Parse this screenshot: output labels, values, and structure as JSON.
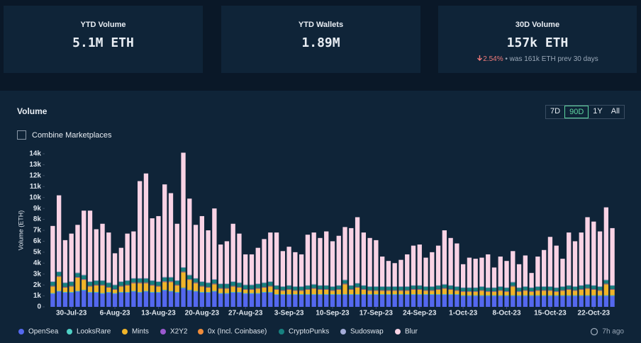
{
  "cards": [
    {
      "title": "YTD Volume",
      "value": "5.1M ETH"
    },
    {
      "title": "YTD Wallets",
      "value": "1.89M"
    },
    {
      "title": "30D Volume",
      "value": "157k ETH",
      "change": "2.54%",
      "note": "• was 161k ETH prev 30 days"
    }
  ],
  "panel": {
    "title": "Volume",
    "ranges": [
      "7D",
      "90D",
      "1Y",
      "All"
    ],
    "active_range": "90D",
    "checkbox": "Combine Marketplaces",
    "updated": "7h ago"
  },
  "chart_data": {
    "type": "bar",
    "stacked": true,
    "ylabel": "Volume (ETH)",
    "grid": false,
    "ylim": [
      0,
      14000
    ],
    "yticks": [
      0,
      {
        "value": 1000,
        "label": "1k"
      },
      {
        "value": 2000,
        "label": "2k"
      },
      {
        "value": 3000,
        "label": "3k"
      },
      {
        "value": 4000,
        "label": "4k"
      },
      {
        "value": 5000,
        "label": "5k"
      },
      {
        "value": 6000,
        "label": "6k"
      },
      {
        "value": 7000,
        "label": "7k"
      },
      {
        "value": 8000,
        "label": "8k"
      },
      {
        "value": 9000,
        "label": "9k"
      },
      {
        "value": 10000,
        "label": "10k"
      },
      {
        "value": 11000,
        "label": "11k"
      },
      {
        "value": 12000,
        "label": "12k"
      },
      {
        "value": 13000,
        "label": "13k"
      },
      {
        "value": 14000,
        "label": "14k"
      }
    ],
    "categories": [
      null,
      null,
      null,
      "30-Jul-23",
      null,
      null,
      null,
      null,
      null,
      null,
      "6-Aug-23",
      null,
      null,
      null,
      null,
      null,
      null,
      "13-Aug-23",
      null,
      null,
      null,
      null,
      null,
      null,
      "20-Aug-23",
      null,
      null,
      null,
      null,
      null,
      null,
      "27-Aug-23",
      null,
      null,
      null,
      null,
      null,
      null,
      "3-Sep-23",
      null,
      null,
      null,
      null,
      null,
      null,
      "10-Sep-23",
      null,
      null,
      null,
      null,
      null,
      null,
      "17-Sep-23",
      null,
      null,
      null,
      null,
      null,
      null,
      "24-Sep-23",
      null,
      null,
      null,
      null,
      null,
      null,
      "1-Oct-23",
      null,
      null,
      null,
      null,
      null,
      null,
      "8-Oct-23",
      null,
      null,
      null,
      null,
      null,
      null,
      "15-Oct-23",
      null,
      null,
      null,
      null,
      null,
      null,
      "22-Oct-23",
      null,
      null,
      null
    ],
    "series": [
      {
        "name": "OpenSea",
        "color": "#5468ee",
        "values": [
          1200,
          1400,
          1300,
          1300,
          1400,
          1500,
          1300,
          1300,
          1200,
          1300,
          1200,
          1300,
          1300,
          1400,
          1300,
          1400,
          1300,
          1300,
          1500,
          1400,
          1300,
          1700,
          1500,
          1400,
          1300,
          1300,
          1400,
          1200,
          1200,
          1300,
          1300,
          1200,
          1200,
          1200,
          1300,
          1300,
          1100,
          1100,
          1100,
          1100,
          1100,
          1100,
          1100,
          1100,
          1100,
          1100,
          1100,
          1100,
          1100,
          1100,
          1100,
          1100,
          1100,
          1100,
          1100,
          1100,
          1100,
          1100,
          1100,
          1100,
          1100,
          1100,
          1100,
          1100,
          1100,
          1100,
          1000,
          1000,
          1000,
          1000,
          1000,
          1000,
          1000,
          1000,
          1000,
          1000,
          1000,
          1000,
          1000,
          1000,
          1000,
          1000,
          1000,
          1000,
          1000,
          1000,
          1000,
          1000,
          1000,
          1000,
          1000
        ]
      },
      {
        "name": "LooksRare",
        "color": "#4fd1c5",
        "values": [
          60,
          60,
          60,
          60,
          60,
          60,
          60,
          60,
          60,
          60,
          60,
          60,
          60,
          60,
          60,
          60,
          60,
          60,
          60,
          60,
          60,
          60,
          60,
          60,
          60,
          60,
          60,
          60,
          60,
          60,
          60,
          60,
          60,
          60,
          60,
          60,
          60,
          60,
          60,
          60,
          60,
          60,
          60,
          60,
          60,
          60,
          60,
          60,
          60,
          60,
          60,
          60,
          60,
          60,
          60,
          60,
          60,
          60,
          60,
          60,
          60,
          60,
          60,
          60,
          60,
          60,
          60,
          60,
          60,
          60,
          60,
          60,
          60,
          60,
          60,
          60,
          60,
          60,
          60,
          60,
          60,
          60,
          60,
          60,
          60,
          60,
          60,
          60,
          60,
          60,
          60
        ]
      },
      {
        "name": "Mints",
        "color": "#f0b429",
        "values": [
          600,
          1300,
          400,
          500,
          1200,
          900,
          500,
          600,
          700,
          400,
          300,
          500,
          600,
          700,
          800,
          700,
          600,
          500,
          700,
          800,
          600,
          1400,
          900,
          700,
          500,
          400,
          600,
          400,
          400,
          500,
          400,
          300,
          300,
          400,
          400,
          500,
          400,
          300,
          400,
          300,
          300,
          400,
          500,
          400,
          400,
          300,
          400,
          900,
          400,
          600,
          400,
          300,
          300,
          300,
          300,
          300,
          300,
          300,
          400,
          400,
          300,
          300,
          400,
          500,
          400,
          300,
          300,
          300,
          300,
          400,
          300,
          300,
          400,
          300,
          800,
          300,
          400,
          300,
          400,
          400,
          400,
          300,
          400,
          500,
          400,
          500,
          600,
          500,
          400,
          1000,
          500
        ]
      },
      {
        "name": "X2Y2",
        "color": "#9b59d0",
        "values": [
          40,
          40,
          40,
          40,
          40,
          40,
          40,
          40,
          40,
          40,
          40,
          40,
          40,
          40,
          40,
          40,
          40,
          40,
          40,
          40,
          40,
          40,
          40,
          40,
          40,
          40,
          40,
          40,
          40,
          40,
          40,
          40,
          40,
          40,
          40,
          40,
          40,
          40,
          40,
          40,
          40,
          40,
          40,
          40,
          40,
          40,
          40,
          40,
          40,
          40,
          40,
          40,
          40,
          40,
          40,
          40,
          40,
          40,
          40,
          40,
          40,
          40,
          40,
          40,
          40,
          40,
          40,
          40,
          40,
          40,
          40,
          40,
          40,
          40,
          40,
          40,
          40,
          40,
          40,
          40,
          40,
          40,
          40,
          40,
          40,
          40,
          40,
          40,
          40,
          40,
          40
        ]
      },
      {
        "name": "0x (Incl. Coinbase)",
        "color": "#f08c3a",
        "values": [
          30,
          30,
          30,
          30,
          30,
          30,
          30,
          30,
          30,
          30,
          30,
          30,
          30,
          30,
          30,
          30,
          30,
          30,
          30,
          30,
          30,
          30,
          30,
          30,
          30,
          30,
          30,
          30,
          30,
          30,
          30,
          30,
          30,
          30,
          30,
          30,
          30,
          30,
          30,
          30,
          30,
          30,
          30,
          30,
          30,
          30,
          30,
          30,
          30,
          30,
          30,
          30,
          30,
          30,
          30,
          30,
          30,
          30,
          30,
          30,
          30,
          30,
          30,
          30,
          30,
          30,
          30,
          30,
          30,
          30,
          30,
          30,
          30,
          30,
          30,
          30,
          30,
          30,
          30,
          30,
          30,
          30,
          30,
          30,
          30,
          30,
          30,
          30,
          30,
          30,
          30
        ]
      },
      {
        "name": "CryptoPunks",
        "color": "#17807f",
        "values": [
          350,
          350,
          350,
          350,
          350,
          350,
          350,
          350,
          350,
          350,
          350,
          350,
          350,
          350,
          350,
          350,
          350,
          350,
          350,
          350,
          350,
          350,
          350,
          350,
          350,
          350,
          350,
          350,
          350,
          350,
          350,
          350,
          350,
          350,
          350,
          350,
          300,
          300,
          300,
          300,
          300,
          300,
          300,
          300,
          300,
          300,
          300,
          300,
          300,
          300,
          300,
          300,
          300,
          300,
          300,
          300,
          300,
          300,
          300,
          300,
          300,
          300,
          300,
          300,
          300,
          300,
          300,
          300,
          300,
          300,
          300,
          300,
          300,
          300,
          300,
          300,
          300,
          300,
          300,
          300,
          300,
          300,
          300,
          300,
          300,
          300,
          300,
          300,
          300,
          300,
          300
        ]
      },
      {
        "name": "Sudoswap",
        "color": "#a4acd8",
        "values": [
          50,
          50,
          50,
          50,
          50,
          50,
          50,
          50,
          50,
          50,
          50,
          50,
          50,
          50,
          50,
          50,
          50,
          50,
          50,
          50,
          50,
          50,
          50,
          50,
          50,
          50,
          50,
          50,
          50,
          50,
          50,
          50,
          50,
          50,
          50,
          50,
          50,
          50,
          50,
          50,
          50,
          50,
          50,
          50,
          50,
          50,
          50,
          50,
          50,
          50,
          50,
          50,
          50,
          50,
          50,
          50,
          50,
          50,
          50,
          50,
          50,
          50,
          50,
          50,
          50,
          50,
          50,
          50,
          50,
          50,
          50,
          50,
          50,
          50,
          50,
          50,
          50,
          50,
          50,
          50,
          50,
          50,
          50,
          50,
          50,
          50,
          50,
          50,
          50,
          50,
          50
        ]
      },
      {
        "name": "Blur",
        "color": "#f9d3e5",
        "values": [
          5070,
          6970,
          3870,
          4370,
          4370,
          5870,
          6470,
          4670,
          5170,
          4570,
          2870,
          3070,
          4270,
          4270,
          8870,
          9570,
          5670,
          5970,
          8470,
          7670,
          5170,
          10470,
          6970,
          4870,
          5970,
          4770,
          6470,
          3570,
          3870,
          5270,
          4470,
          2770,
          2770,
          3270,
          3970,
          4470,
          4820,
          3220,
          3520,
          3120,
          2920,
          4620,
          4720,
          4320,
          4920,
          4120,
          4520,
          4820,
          5220,
          6020,
          4820,
          4420,
          4220,
          2720,
          2320,
          2120,
          2420,
          2920,
          3620,
          3720,
          2620,
          3120,
          3620,
          4920,
          4320,
          3920,
          2120,
          2720,
          2620,
          2620,
          3020,
          1820,
          2720,
          2420,
          2820,
          2120,
          2820,
          1320,
          2720,
          3320,
          4520,
          3820,
          2520,
          4820,
          4120,
          4820,
          6120,
          5820,
          5020,
          6620,
          5220
        ]
      }
    ]
  }
}
